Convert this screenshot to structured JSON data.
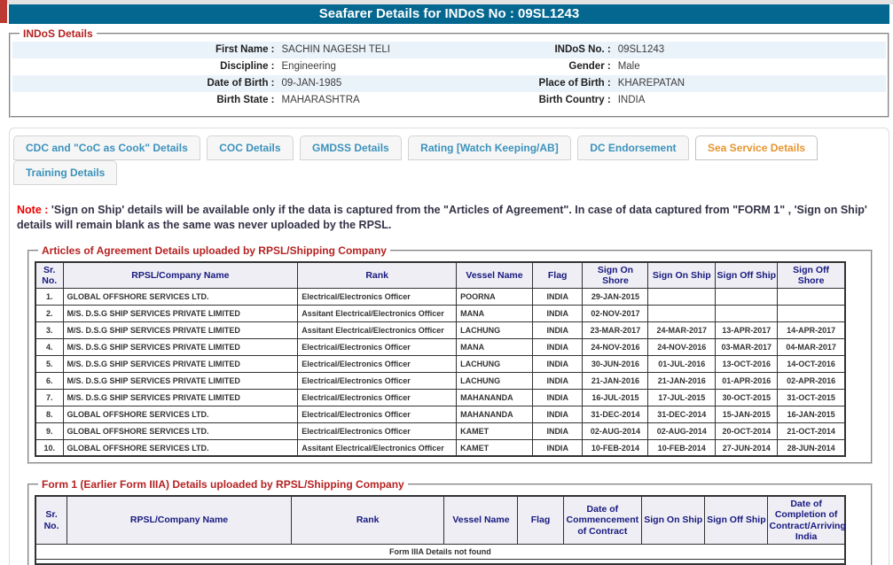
{
  "header": {
    "title": "Seafarer Details for INDoS No : 09SL1243"
  },
  "colors": {
    "title_bar": "#04678f",
    "legend_red": "#b52222",
    "note_red": "#ee0000",
    "table_header_navy": "#191980",
    "tab_active_orange": "#e8952f",
    "tab_inactive_blue": "#3c92bc",
    "alt_row_blue": "#eaf2fa",
    "corner_mark_red": "#bc3a31"
  },
  "indos_details": {
    "legend": "INDoS Details",
    "fields": [
      {
        "label": "First Name :",
        "value": "SACHIN NAGESH TELI",
        "label2": "INDoS No. :",
        "value2": "09SL1243"
      },
      {
        "label": "Discipline :",
        "value": "Engineering",
        "label2": "Gender :",
        "value2": "Male"
      },
      {
        "label": "Date of Birth :",
        "value": "09-JAN-1985",
        "label2": "Place of Birth :",
        "value2": "KHAREPATAN"
      },
      {
        "label": "Birth State :",
        "value": "MAHARASHTRA",
        "label2": "Birth Country :",
        "value2": "INDIA"
      }
    ]
  },
  "tabs": [
    {
      "label": "CDC and \"CoC as Cook\" Details",
      "active": false
    },
    {
      "label": "COC Details",
      "active": false
    },
    {
      "label": "GMDSS Details",
      "active": false
    },
    {
      "label": "Rating [Watch Keeping/AB]",
      "active": false
    },
    {
      "label": "DC Endorsement",
      "active": false
    },
    {
      "label": "Sea Service Details",
      "active": true
    },
    {
      "label": "Training Details",
      "active": false
    }
  ],
  "note": {
    "prefix": "Note :",
    "text": " 'Sign on Ship' details will be available only if the data is captured from the \"Articles of Agreement\". In case of data captured from \"FORM 1\" , 'Sign on Ship' details will remain blank as the same was never uploaded by the RPSL."
  },
  "articles_table": {
    "legend": "Articles of Agreement Details uploaded by RPSL/Shipping Company",
    "headers": [
      "Sr. No.",
      "RPSL/Company Name",
      "Rank",
      "Vessel Name",
      "Flag",
      "Sign On Shore",
      "Sign On Ship",
      "Sign Off Ship",
      "Sign Off Shore"
    ],
    "rows": [
      [
        "1.",
        "GLOBAL OFFSHORE SERVICES LTD.",
        "Electrical/Electronics Officer",
        "POORNA",
        "INDIA",
        "29-JAN-2015",
        "",
        "",
        ""
      ],
      [
        "2.",
        "M/S. D.S.G SHIP SERVICES PRIVATE LIMITED",
        "Assitant Electrical/Electronics Officer",
        "MANA",
        "INDIA",
        "02-NOV-2017",
        "",
        "",
        ""
      ],
      [
        "3.",
        "M/S. D.S.G SHIP SERVICES PRIVATE LIMITED",
        "Assitant Electrical/Electronics Officer",
        "LACHUNG",
        "INDIA",
        "23-MAR-2017",
        "24-MAR-2017",
        "13-APR-2017",
        "14-APR-2017"
      ],
      [
        "4.",
        "M/S. D.S.G SHIP SERVICES PRIVATE LIMITED",
        "Electrical/Electronics Officer",
        "MANA",
        "INDIA",
        "24-NOV-2016",
        "24-NOV-2016",
        "03-MAR-2017",
        "04-MAR-2017"
      ],
      [
        "5.",
        "M/S. D.S.G SHIP SERVICES PRIVATE LIMITED",
        "Electrical/Electronics Officer",
        "LACHUNG",
        "INDIA",
        "30-JUN-2016",
        "01-JUL-2016",
        "13-OCT-2016",
        "14-OCT-2016"
      ],
      [
        "6.",
        "M/S. D.S.G SHIP SERVICES PRIVATE LIMITED",
        "Electrical/Electronics Officer",
        "LACHUNG",
        "INDIA",
        "21-JAN-2016",
        "21-JAN-2016",
        "01-APR-2016",
        "02-APR-2016"
      ],
      [
        "7.",
        "M/S. D.S.G SHIP SERVICES PRIVATE LIMITED",
        "Electrical/Electronics Officer",
        "MAHANANDA",
        "INDIA",
        "16-JUL-2015",
        "17-JUL-2015",
        "30-OCT-2015",
        "31-OCT-2015"
      ],
      [
        "8.",
        "GLOBAL OFFSHORE SERVICES LTD.",
        "Electrical/Electronics Officer",
        "MAHANANDA",
        "INDIA",
        "31-DEC-2014",
        "31-DEC-2014",
        "15-JAN-2015",
        "16-JAN-2015"
      ],
      [
        "9.",
        "GLOBAL OFFSHORE SERVICES LTD.",
        "Electrical/Electronics Officer",
        "KAMET",
        "INDIA",
        "02-AUG-2014",
        "02-AUG-2014",
        "20-OCT-2014",
        "21-OCT-2014"
      ],
      [
        "10.",
        "GLOBAL OFFSHORE SERVICES LTD.",
        "Assitant Electrical/Electronics Officer",
        "KAMET",
        "INDIA",
        "10-FEB-2014",
        "10-FEB-2014",
        "27-JUN-2014",
        "28-JUN-2014"
      ]
    ]
  },
  "form1_table": {
    "legend": "Form 1 (Earlier Form IIIA) Details uploaded by RPSL/Shipping Company",
    "headers": [
      "Sr. No.",
      "RPSL/Company Name",
      "Rank",
      "Vessel Name",
      "Flag",
      "Date of Commencement of Contract",
      "Sign On Ship",
      "Sign Off Ship",
      "Date of Completion of Contract/Arriving India"
    ],
    "empty_message": "Form IIIA Details not found"
  }
}
